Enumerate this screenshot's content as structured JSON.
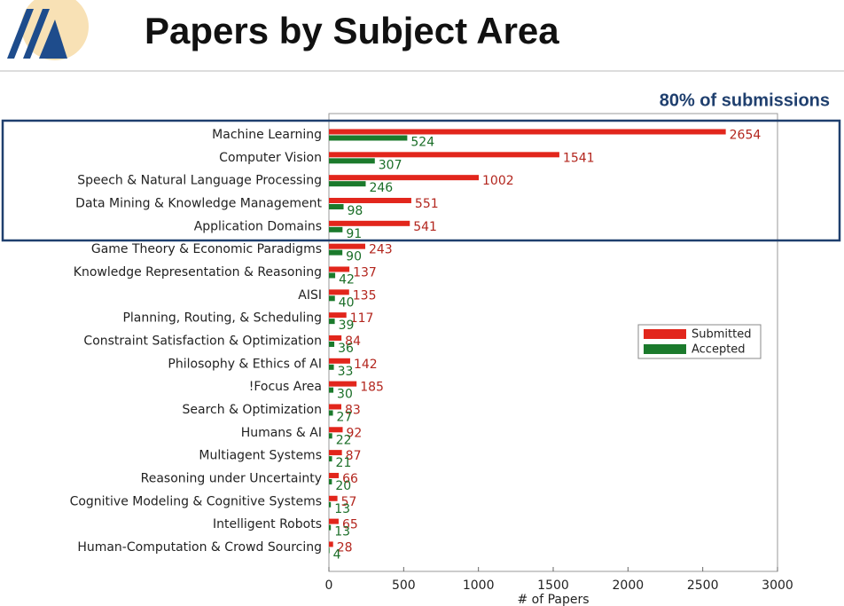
{
  "chart_data": {
    "type": "barh",
    "title": "Papers by Subject Area",
    "annotation": "80% of submissions",
    "xlabel": "# of Papers",
    "categories": [
      "Machine Learning",
      "Computer Vision",
      "Speech & Natural Language Processing",
      "Data Mining & Knowledge Management",
      "Application Domains",
      "Game Theory & Economic Paradigms",
      "Knowledge Representation & Reasoning",
      "AISI",
      "Planning, Routing, & Scheduling",
      "Constraint Satisfaction & Optimization",
      "Philosophy & Ethics of AI",
      "!Focus Area",
      "Search & Optimization",
      "Humans & AI",
      "Multiagent Systems",
      "Reasoning under Uncertainty",
      "Cognitive Modeling & Cognitive Systems",
      "Intelligent Robots",
      "Human-Computation & Crowd Sourcing"
    ],
    "series": [
      {
        "name": "Submitted",
        "color": "#e2261c",
        "label_color": "#b3261e",
        "values": [
          2654,
          1541,
          1002,
          551,
          541,
          243,
          137,
          135,
          117,
          84,
          142,
          185,
          83,
          92,
          87,
          66,
          57,
          65,
          28
        ]
      },
      {
        "name": "Accepted",
        "color": "#1b7a2c",
        "label_color": "#1b6e28",
        "values": [
          524,
          307,
          246,
          98,
          91,
          90,
          42,
          40,
          39,
          36,
          33,
          30,
          27,
          22,
          21,
          20,
          13,
          13,
          4
        ]
      }
    ],
    "xlim": [
      0,
      3000
    ],
    "xticks": [
      0,
      500,
      1000,
      1500,
      2000,
      2500,
      3000
    ],
    "legend": "center right"
  }
}
